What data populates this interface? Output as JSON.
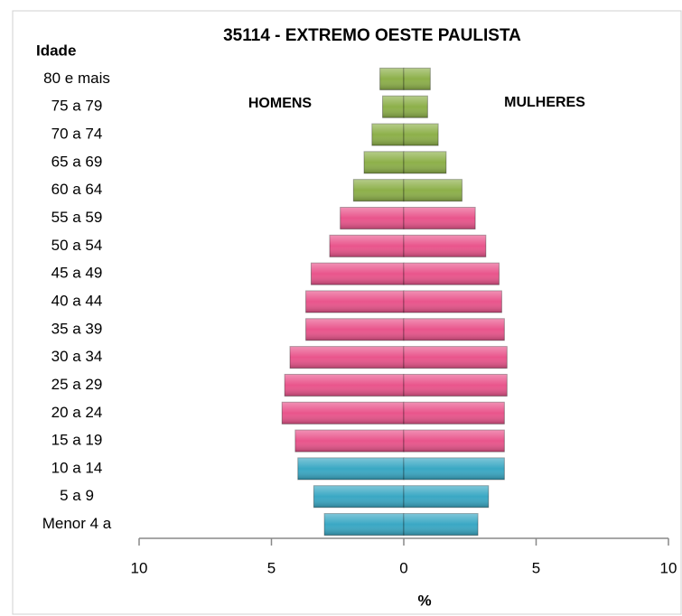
{
  "chart_data": {
    "type": "pyramid",
    "title": "35114 - EXTREMO OESTE PAULISTA",
    "y_label": "Idade",
    "x_label": "%",
    "categories": [
      "80 e mais",
      "75 a 79",
      "70 a 74",
      "65 a 69",
      "60 a 64",
      "55 a 59",
      "50 a 54",
      "45 a 49",
      "40 a 44",
      "35 a 39",
      "30 a 34",
      "25 a 29",
      "20 a 24",
      "15 a 19",
      "10 a 14",
      "5 a 9",
      "Menor 4 a"
    ],
    "series": [
      {
        "name": "HOMENS",
        "values": [
          -0.9,
          -0.8,
          -1.2,
          -1.5,
          -1.9,
          -2.4,
          -2.8,
          -3.5,
          -3.7,
          -3.7,
          -4.3,
          -4.5,
          -4.6,
          -4.1,
          -4.0,
          -3.4,
          -3.0
        ],
        "colors": [
          "#8db04a",
          "#8db04a",
          "#8db04a",
          "#8db04a",
          "#8db04a",
          "#e9558c",
          "#e9558c",
          "#e9558c",
          "#e9558c",
          "#e9558c",
          "#e9558c",
          "#e9558c",
          "#e9558c",
          "#e9558c",
          "#3aa8c4",
          "#3aa8c4",
          "#3aa8c4"
        ]
      },
      {
        "name": "MULHERES",
        "values": [
          1.0,
          0.9,
          1.3,
          1.6,
          2.2,
          2.7,
          3.1,
          3.6,
          3.7,
          3.8,
          3.9,
          3.9,
          3.8,
          3.8,
          3.8,
          3.2,
          2.8
        ],
        "colors": [
          "#8db04a",
          "#8db04a",
          "#8db04a",
          "#8db04a",
          "#8db04a",
          "#e9558c",
          "#e9558c",
          "#e9558c",
          "#e9558c",
          "#e9558c",
          "#e9558c",
          "#e9558c",
          "#e9558c",
          "#e9558c",
          "#3aa8c4",
          "#3aa8c4",
          "#3aa8c4"
        ]
      }
    ],
    "xlim": [
      -10,
      10
    ],
    "xticks": [
      {
        "value": -10,
        "label": "10"
      },
      {
        "value": -5,
        "label": "5"
      },
      0,
      5,
      10
    ]
  }
}
